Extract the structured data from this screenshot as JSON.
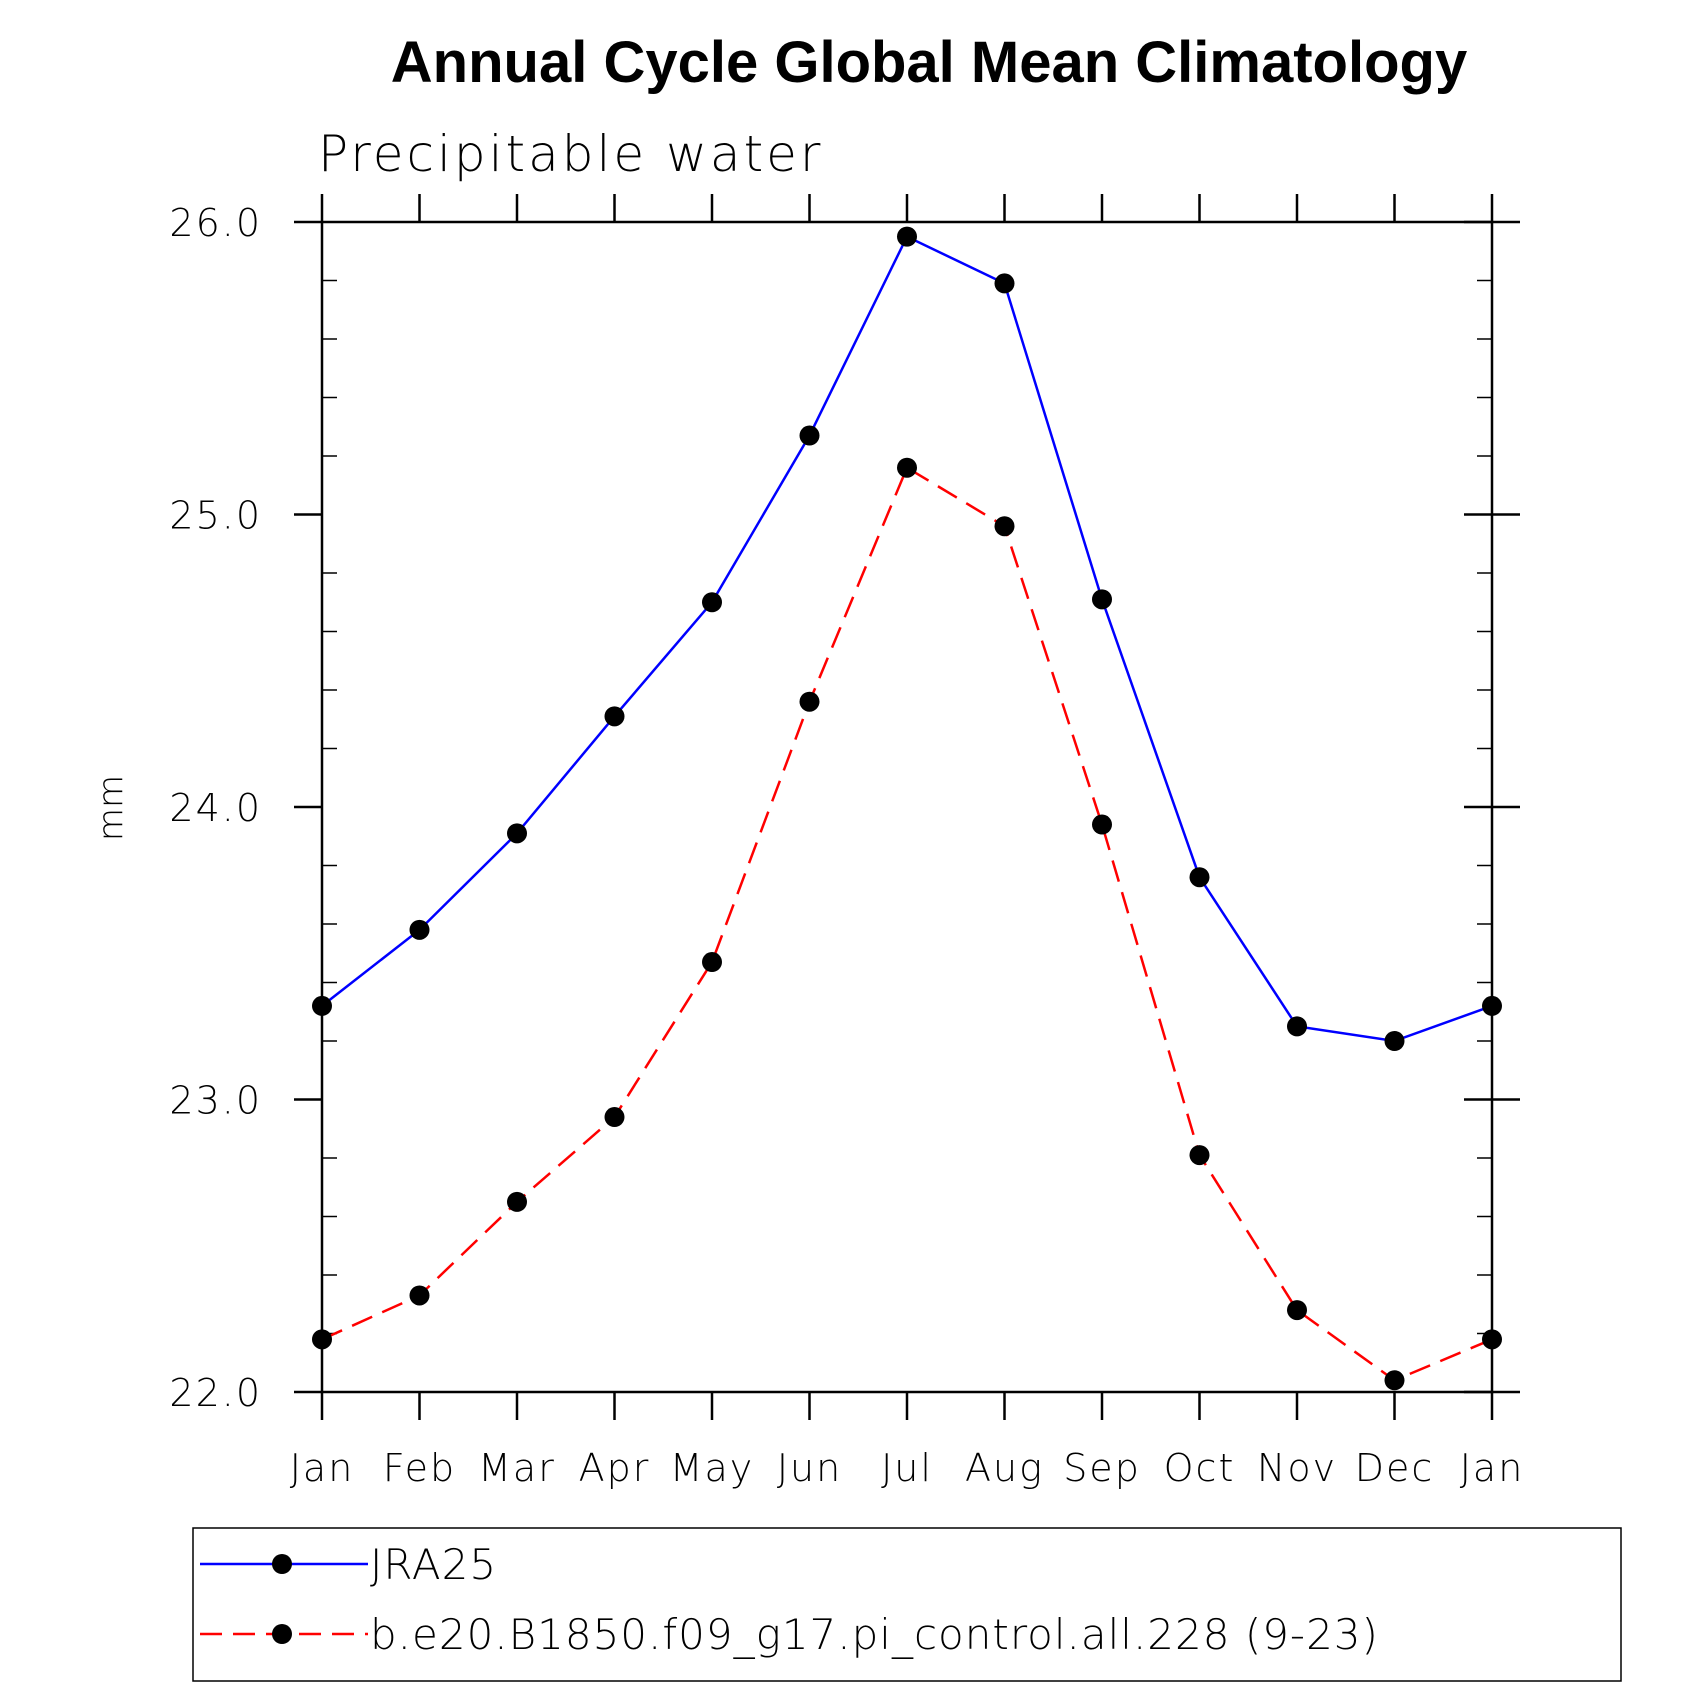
{
  "chart_data": {
    "type": "line",
    "title": "Annual Cycle Global Mean Climatology",
    "subtitle": "Precipitable water",
    "ylabel": "mm",
    "xlabel": "",
    "categories": [
      "Jan",
      "Feb",
      "Mar",
      "Apr",
      "May",
      "Jun",
      "Jul",
      "Aug",
      "Sep",
      "Oct",
      "Nov",
      "Dec",
      "Jan"
    ],
    "ylim": [
      22.0,
      26.0
    ],
    "yticks": [
      "22.0",
      "23.0",
      "24.0",
      "25.0",
      "26.0"
    ],
    "yminor_step": 0.2,
    "grid": false,
    "legend_position": "bottom",
    "series": [
      {
        "name": "JRA25",
        "color": "#0000ff",
        "dash": "solid",
        "marker": "filled-circle",
        "values": [
          23.32,
          23.58,
          23.91,
          24.31,
          24.7,
          25.27,
          25.95,
          25.79,
          24.71,
          23.76,
          23.25,
          23.2,
          23.32
        ]
      },
      {
        "name": "b.e20.B1850.f09_g17.pi_control.all.228 (9-23)",
        "color": "#ff0000",
        "dash": "dashed",
        "marker": "filled-circle",
        "values": [
          22.18,
          22.33,
          22.65,
          22.94,
          23.47,
          24.36,
          25.16,
          24.96,
          23.94,
          22.81,
          22.28,
          22.04,
          22.18
        ]
      }
    ]
  }
}
